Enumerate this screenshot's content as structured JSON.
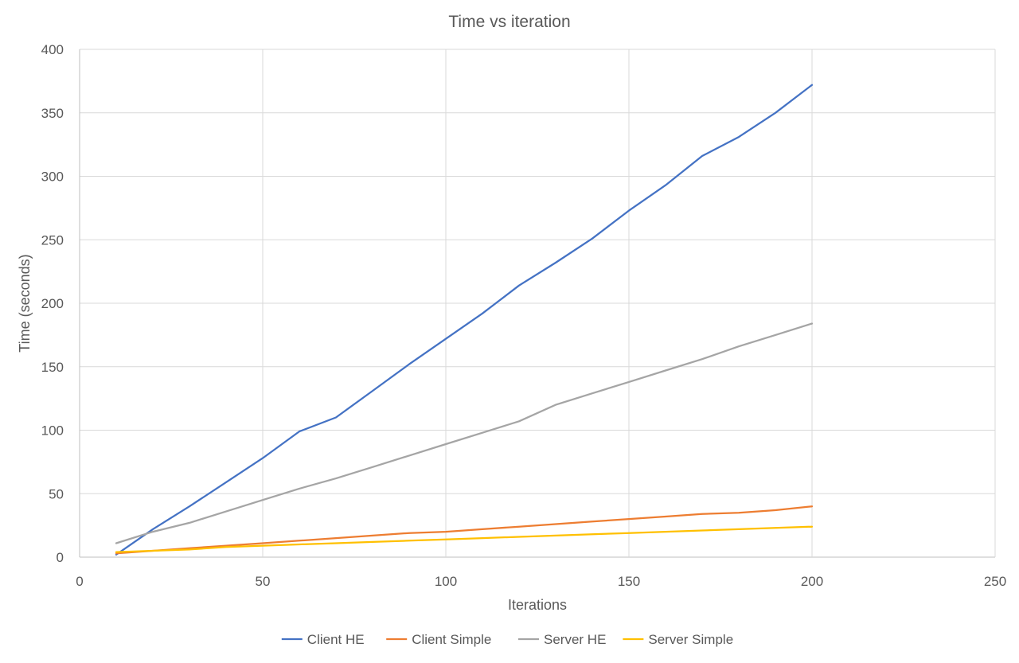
{
  "chart_data": {
    "type": "line",
    "title": "Time vs iteration",
    "xlabel": "Iterations",
    "ylabel": "Time (seconds)",
    "xlim": [
      0,
      250
    ],
    "ylim": [
      0,
      400
    ],
    "xticks": [
      0,
      50,
      100,
      150,
      200,
      250
    ],
    "yticks": [
      0,
      50,
      100,
      150,
      200,
      250,
      300,
      350,
      400
    ],
    "grid": true,
    "legend_position": "bottom",
    "x": [
      10,
      20,
      30,
      40,
      50,
      60,
      70,
      80,
      90,
      100,
      110,
      120,
      130,
      140,
      150,
      160,
      170,
      180,
      190,
      200
    ],
    "series": [
      {
        "name": "Client HE",
        "color": "#4472C4",
        "values": [
          2,
          22,
          40,
          59,
          78,
          99,
          110,
          131,
          152,
          172,
          192,
          214,
          232,
          251,
          273,
          293,
          316,
          331,
          350,
          372
        ]
      },
      {
        "name": "Client Simple",
        "color": "#ED7D31",
        "values": [
          3,
          5,
          7,
          9,
          11,
          13,
          15,
          17,
          19,
          20,
          22,
          24,
          26,
          28,
          30,
          32,
          34,
          35,
          37,
          40
        ]
      },
      {
        "name": "Server HE",
        "color": "#A5A5A5",
        "values": [
          11,
          20,
          27,
          36,
          45,
          54,
          62,
          71,
          80,
          89,
          98,
          107,
          120,
          129,
          138,
          147,
          156,
          166,
          175,
          184
        ]
      },
      {
        "name": "Server Simple",
        "color": "#FFC000",
        "values": [
          4,
          5,
          6,
          8,
          9,
          10,
          11,
          12,
          13,
          14,
          15,
          16,
          17,
          18,
          19,
          20,
          21,
          22,
          23,
          24
        ]
      }
    ]
  }
}
